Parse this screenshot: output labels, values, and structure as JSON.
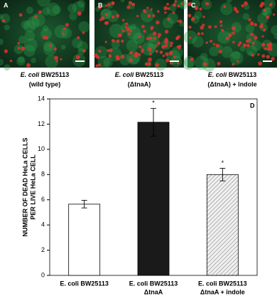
{
  "panels": [
    {
      "label": "A",
      "caption": [
        {
          "italic": "E. coli",
          "rest": " BW25113"
        },
        "(wild type)"
      ]
    },
    {
      "label": "B",
      "caption": [
        {
          "italic": "E. coli",
          "rest": " BW25113"
        },
        "(ΔtnaA)"
      ]
    },
    {
      "label": "C",
      "caption": [
        {
          "italic": "E. coli",
          "rest": " BW25113"
        },
        "(ΔtnaA) + indole"
      ]
    }
  ],
  "chart_data": {
    "type": "bar",
    "panel_label": "D",
    "y_label": [
      "NUMBER OF DEAD HeLa CELLS",
      "PER LIVE HeLa CELL"
    ],
    "categories": [
      [
        "E. coli BW25113"
      ],
      [
        "E. coli BW25113",
        "ΔtnaA"
      ],
      [
        "E. coli BW25113",
        "ΔtnaA + indole"
      ]
    ],
    "series": [
      {
        "values": [
          5.65,
          12.15,
          8.0
        ],
        "errors": [
          0.3,
          1.1,
          0.5
        ],
        "colors": [
          "#ffffff",
          "#1a1a1a",
          "#d9d9d9"
        ],
        "hatch": [
          false,
          false,
          true
        ]
      }
    ],
    "annotations": [
      {
        "text": "*",
        "category": 1
      },
      {
        "text": "*",
        "category": 2
      }
    ],
    "ylim": [
      0,
      14
    ],
    "yticks": [
      0,
      2,
      4,
      6,
      8,
      10,
      12,
      14
    ]
  }
}
